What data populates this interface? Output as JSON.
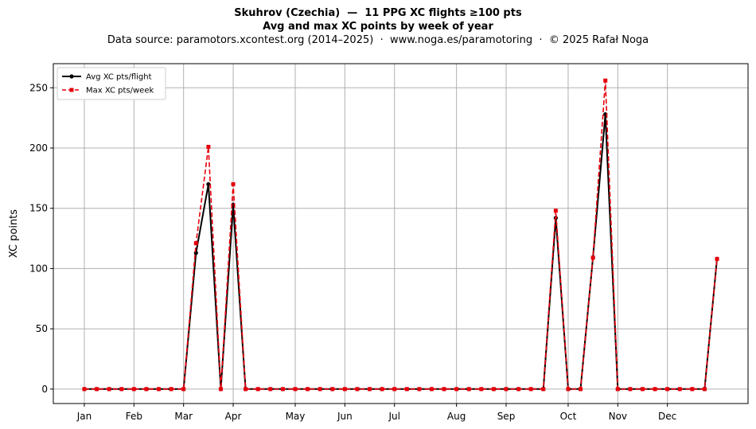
{
  "chart_data": {
    "type": "line",
    "title": "Skuhrov (Czechia)  —  11 PPG XC flights ≥100 pts",
    "subtitle": "Avg and max XC points by week of year",
    "source": "Data source: paramotors.xcontest.org (2014–2025)  ·  www.noga.es/paramotoring  ·  © 2025 Rafał Noga",
    "xlabel": "",
    "ylabel": "XC points",
    "xlim": [
      -1.5,
      54.5
    ],
    "ylim": [
      -12,
      270
    ],
    "yticks": [
      0,
      50,
      100,
      150,
      200,
      250
    ],
    "month_ticks": [
      {
        "label": "Jan",
        "week": 1
      },
      {
        "label": "Feb",
        "week": 5
      },
      {
        "label": "Mar",
        "week": 9
      },
      {
        "label": "Apr",
        "week": 13
      },
      {
        "label": "May",
        "week": 18
      },
      {
        "label": "Jun",
        "week": 22
      },
      {
        "label": "Jul",
        "week": 26
      },
      {
        "label": "Aug",
        "week": 31
      },
      {
        "label": "Sep",
        "week": 35
      },
      {
        "label": "Oct",
        "week": 40
      },
      {
        "label": "Nov",
        "week": 44
      },
      {
        "label": "Dec",
        "week": 48
      }
    ],
    "grid": true,
    "legend_position": "top-left",
    "weeks": [
      1,
      2,
      3,
      4,
      5,
      6,
      7,
      8,
      9,
      10,
      11,
      12,
      13,
      14,
      15,
      16,
      17,
      18,
      19,
      20,
      21,
      22,
      23,
      24,
      25,
      26,
      27,
      28,
      29,
      30,
      31,
      32,
      33,
      34,
      35,
      36,
      37,
      38,
      39,
      40,
      41,
      42,
      43,
      44,
      45,
      46,
      47,
      48,
      49,
      50,
      51,
      52
    ],
    "series": [
      {
        "name": "Avg XC pts/flight",
        "color": "#000000",
        "style": "solid",
        "marker": "circle",
        "values": [
          0,
          0,
          0,
          0,
          0,
          0,
          0,
          0,
          0,
          113,
          170,
          0,
          153,
          0,
          0,
          0,
          0,
          0,
          0,
          0,
          0,
          0,
          0,
          0,
          0,
          0,
          0,
          0,
          0,
          0,
          0,
          0,
          0,
          0,
          0,
          0,
          0,
          0,
          142,
          0,
          0,
          109,
          228,
          0,
          0,
          0,
          0,
          0,
          0,
          0,
          0,
          108
        ]
      },
      {
        "name": "Max XC pts/week",
        "color": "#e8000b",
        "style": "dashed",
        "marker": "square",
        "values": [
          0,
          0,
          0,
          0,
          0,
          0,
          0,
          0,
          0,
          121,
          201,
          0,
          170,
          0,
          0,
          0,
          0,
          0,
          0,
          0,
          0,
          0,
          0,
          0,
          0,
          0,
          0,
          0,
          0,
          0,
          0,
          0,
          0,
          0,
          0,
          0,
          0,
          0,
          148,
          0,
          0,
          109,
          256,
          0,
          0,
          0,
          0,
          0,
          0,
          0,
          0,
          108
        ]
      }
    ]
  }
}
